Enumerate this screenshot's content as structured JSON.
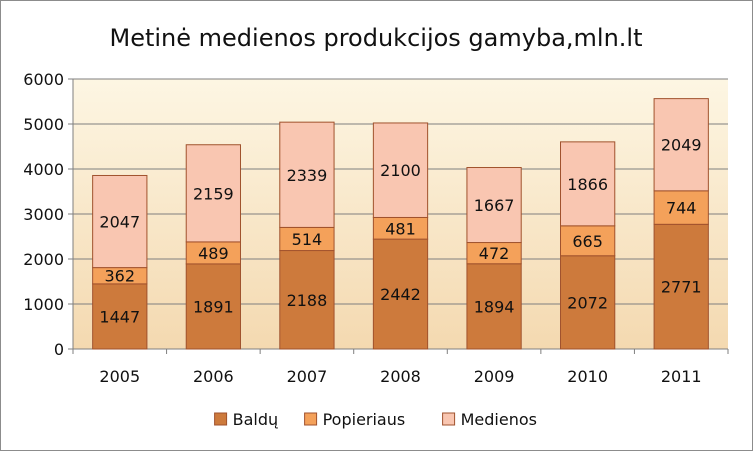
{
  "chart_data": {
    "type": "bar",
    "stacked": true,
    "title": "Metinė medienos produkcijos gamyba,mln.lt",
    "xlabel": "",
    "ylabel": "",
    "categories": [
      "2005",
      "2006",
      "2007",
      "2008",
      "2009",
      "2010",
      "2011"
    ],
    "ylim": [
      0,
      6000
    ],
    "yticks": [
      0,
      1000,
      2000,
      3000,
      4000,
      5000,
      6000
    ],
    "grid": true,
    "legend_position": "bottom",
    "series": [
      {
        "name": "Baldų",
        "color": "#cd7a3c",
        "values": [
          1447,
          1891,
          2188,
          2442,
          1894,
          2072,
          2771
        ]
      },
      {
        "name": "Popieriaus",
        "color": "#f4a15a",
        "values": [
          362,
          489,
          514,
          481,
          472,
          665,
          744
        ]
      },
      {
        "name": "Medienos",
        "color": "#f9c6b1",
        "values": [
          2047,
          2159,
          2339,
          2100,
          1667,
          1866,
          2049
        ]
      }
    ],
    "plot_background": [
      "#fdf6e3",
      "#f4d9b0"
    ]
  }
}
